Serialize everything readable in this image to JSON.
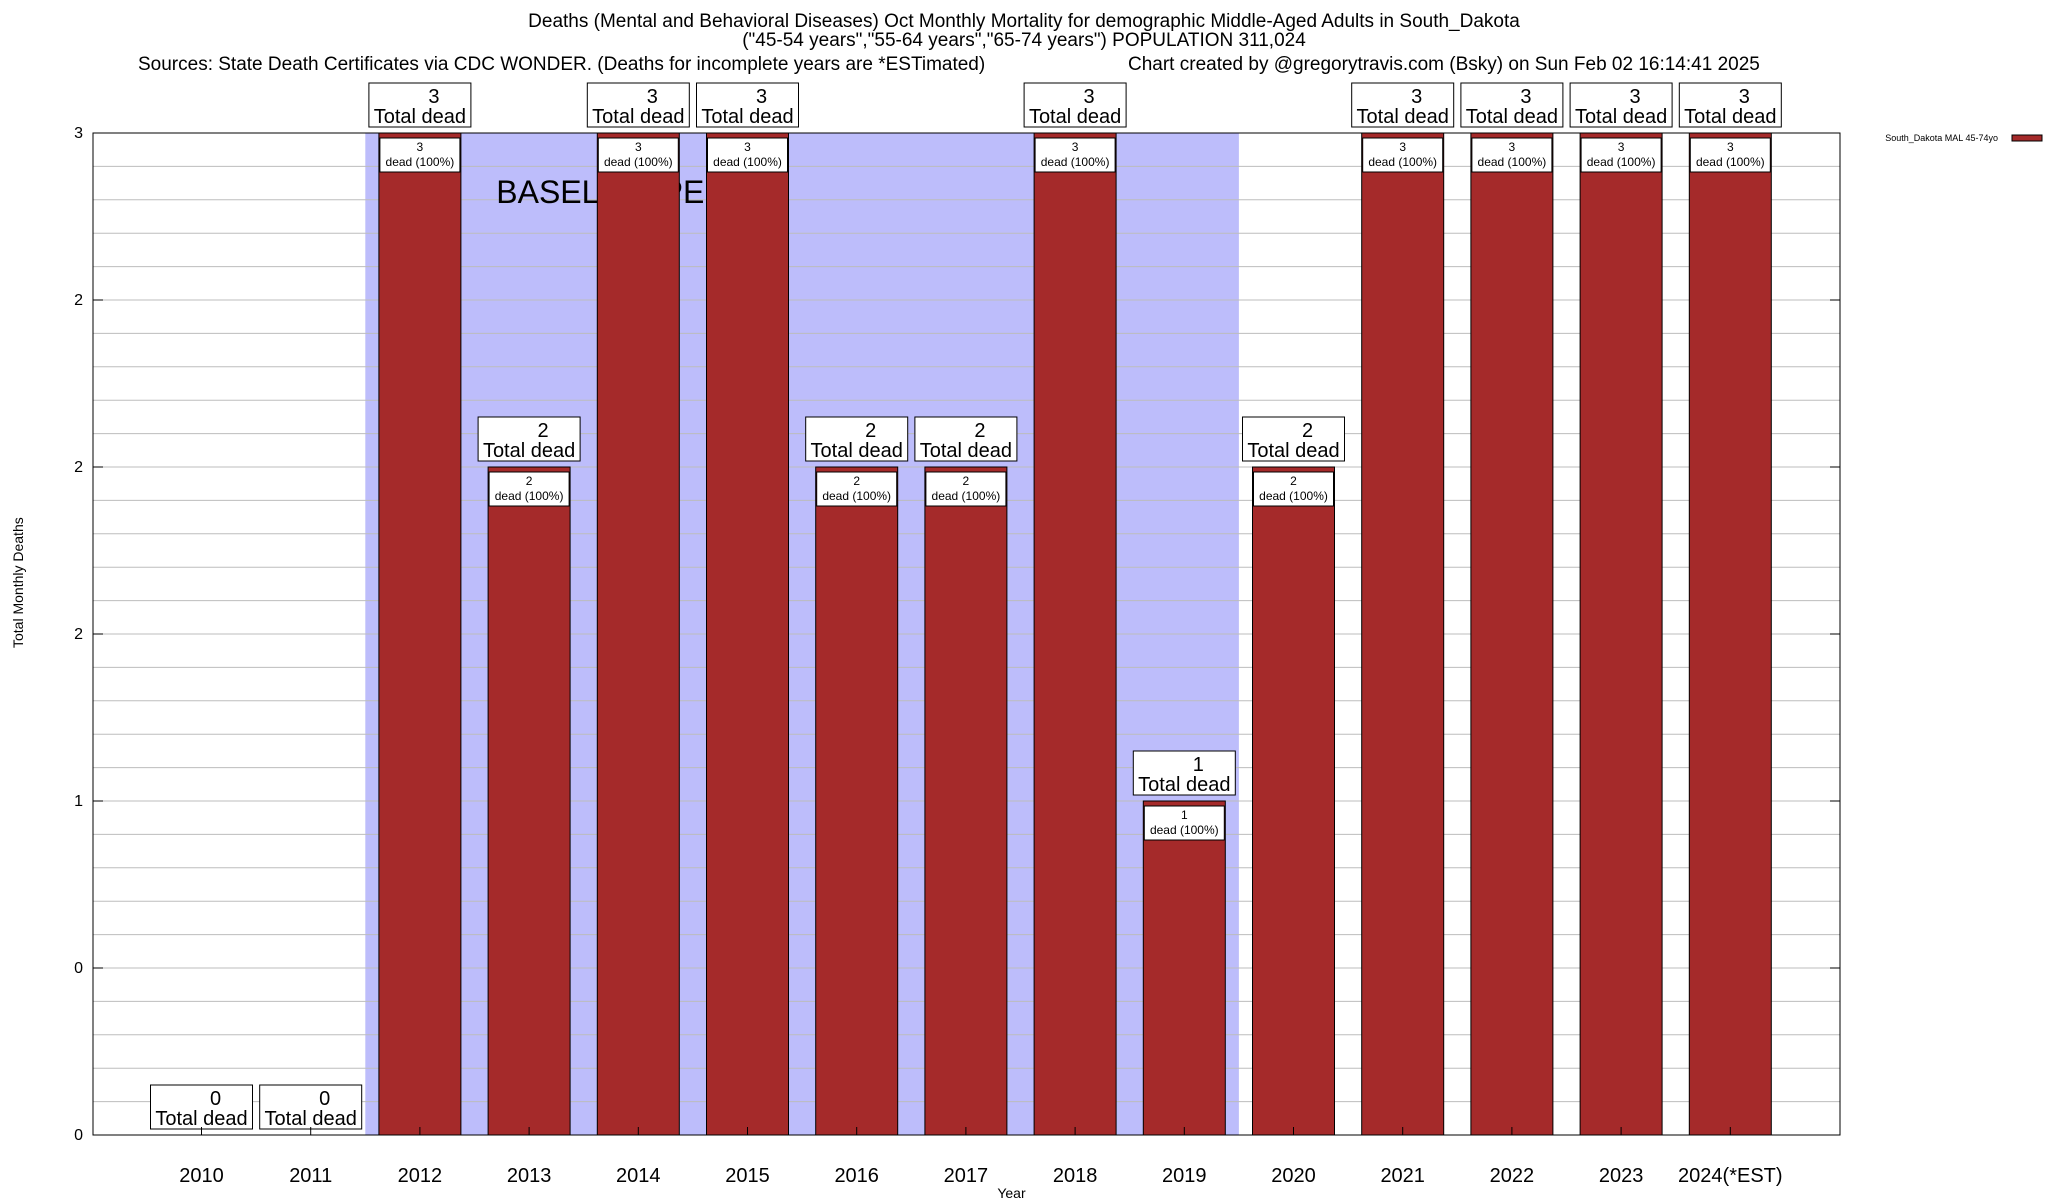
{
  "title_lines": [
    "Deaths (Mental and Behavioral Diseases) Oct Monthly Mortality for demographic Middle-Aged Adults in South_Dakota",
    "(\"45-54 years\",\"55-64 years\",\"65-74 years\") POPULATION 311,024"
  ],
  "sources_text": "Sources: State Death Certificates via CDC WONDER. (Deaths for incomplete years are *ESTimated)",
  "credit_text": "Chart created by @gregorytravis.com (Bsky) on Sun Feb 02 16:14:41 2025",
  "chart_data": {
    "type": "bar",
    "categories": [
      "2010",
      "2011",
      "2012",
      "2013",
      "2014",
      "2015",
      "2016",
      "2017",
      "2018",
      "2019",
      "2020",
      "2021",
      "2022",
      "2023",
      "2024(*EST)"
    ],
    "series": [
      {
        "name": "South_Dakota MAL 45-74yo",
        "values": [
          0,
          0,
          3,
          2,
          3,
          3,
          2,
          2,
          3,
          1,
          2,
          3,
          3,
          3,
          3
        ],
        "color": "#a52a2a"
      }
    ],
    "total_labels": [
      "0",
      "0",
      "3",
      "2",
      "3",
      "3",
      "2",
      "2",
      "3",
      "1",
      "2",
      "3",
      "3",
      "3",
      "3"
    ],
    "total_suffix": "Total dead",
    "bar_labels": [
      "",
      "",
      "3",
      "2",
      "3",
      "3",
      "2",
      "2",
      "3",
      "1",
      "2",
      "3",
      "3",
      "3",
      "3"
    ],
    "bar_label_suffix": "dead (100%)",
    "xlabel": "Year",
    "ylabel": "Total Monthly Deaths",
    "ylim": [
      0,
      3
    ],
    "ytick_labels": [
      "0",
      "0",
      "1",
      "2",
      "2",
      "2",
      "3"
    ],
    "baseline_period": {
      "label": "BASELINE PERIOD",
      "from": "2012",
      "to": "2019",
      "color": "#bdbdfb"
    },
    "grid": true,
    "legend_position": "top-right"
  }
}
